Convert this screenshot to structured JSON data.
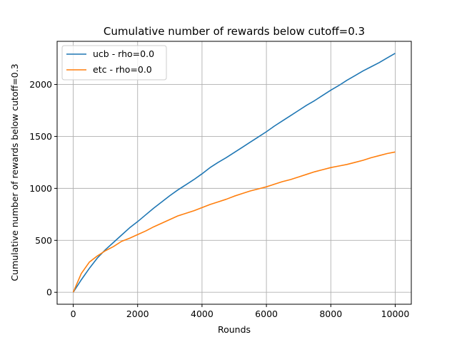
{
  "chart_data": {
    "type": "line",
    "title": "Cumulative number of rewards below cutoff=0.3",
    "xlabel": "Rounds",
    "ylabel": "Cumulative number of rewards below cutoff=0.3",
    "xlim": [
      -500,
      10500
    ],
    "ylim": [
      -115,
      2415
    ],
    "xticks": [
      0,
      2000,
      4000,
      6000,
      8000,
      10000
    ],
    "yticks": [
      0,
      500,
      1000,
      1500,
      2000
    ],
    "xtick_labels": [
      "0",
      "2000",
      "4000",
      "6000",
      "8000",
      "10000"
    ],
    "ytick_labels": [
      "0",
      "500",
      "1000",
      "1500",
      "2000"
    ],
    "grid": true,
    "legend_position": "top-left",
    "series": [
      {
        "name": "ucb - rho=0.0",
        "color": "#1f77b4",
        "x": [
          0,
          250,
          500,
          750,
          1000,
          1250,
          1500,
          1750,
          2000,
          2250,
          2500,
          2750,
          3000,
          3250,
          3500,
          3750,
          4000,
          4250,
          4500,
          4750,
          5000,
          5250,
          5500,
          5750,
          6000,
          6250,
          6500,
          6750,
          7000,
          7250,
          7500,
          7750,
          8000,
          8250,
          8500,
          8750,
          9000,
          9250,
          9500,
          9750,
          10000
        ],
        "values": [
          0,
          120,
          230,
          330,
          410,
          480,
          550,
          620,
          680,
          745,
          810,
          870,
          930,
          985,
          1035,
          1085,
          1140,
          1200,
          1250,
          1295,
          1345,
          1395,
          1445,
          1495,
          1545,
          1600,
          1650,
          1700,
          1750,
          1800,
          1845,
          1895,
          1945,
          1990,
          2040,
          2085,
          2130,
          2170,
          2210,
          2255,
          2300
        ]
      },
      {
        "name": "etc - rho=0.0",
        "color": "#ff7f0e",
        "x": [
          0,
          250,
          500,
          750,
          1000,
          1250,
          1500,
          1750,
          2000,
          2250,
          2500,
          2750,
          3000,
          3250,
          3500,
          3750,
          4000,
          4250,
          4500,
          4750,
          5000,
          5250,
          5500,
          5750,
          6000,
          6250,
          6500,
          6750,
          7000,
          7250,
          7500,
          7750,
          8000,
          8250,
          8500,
          8750,
          9000,
          9250,
          9500,
          9750,
          10000
        ],
        "values": [
          0,
          180,
          290,
          350,
          400,
          440,
          490,
          520,
          555,
          590,
          630,
          665,
          700,
          735,
          760,
          785,
          815,
          845,
          870,
          895,
          925,
          950,
          975,
          995,
          1015,
          1040,
          1065,
          1085,
          1110,
          1135,
          1160,
          1180,
          1200,
          1215,
          1230,
          1250,
          1270,
          1295,
          1315,
          1335,
          1350
        ]
      }
    ]
  }
}
